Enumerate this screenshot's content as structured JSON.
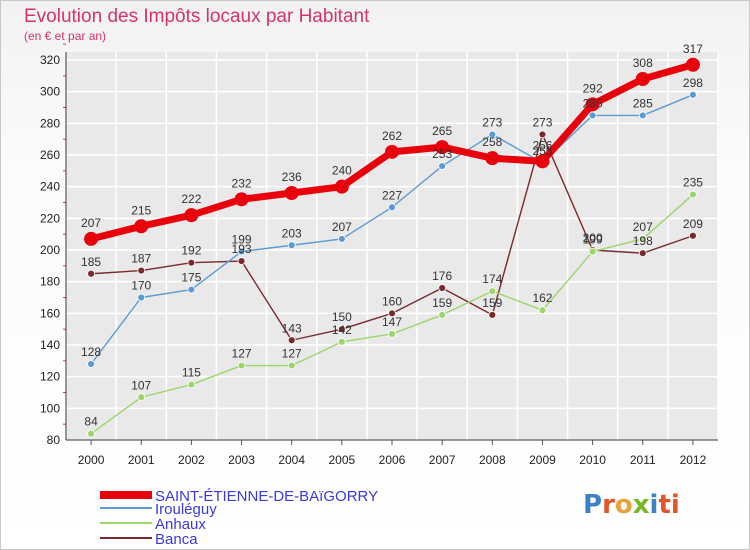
{
  "chart_data": {
    "type": "line",
    "title": "Evolution des Impôts locaux par Habitant",
    "subtitle": "(en € et par an)",
    "x": [
      "2000",
      "2001",
      "2002",
      "2003",
      "2004",
      "2005",
      "2006",
      "2007",
      "2008",
      "2009",
      "2010",
      "2011",
      "2012"
    ],
    "ylim": [
      80,
      320
    ],
    "yticks": [
      80,
      100,
      120,
      140,
      160,
      180,
      200,
      220,
      240,
      260,
      280,
      300,
      320
    ],
    "series": [
      {
        "name": "SAINT-ÉTIENNE-DE-BAïGORRY",
        "color": "#e8000b",
        "values": [
          207,
          215,
          222,
          232,
          236,
          240,
          262,
          265,
          258,
          256,
          292,
          308,
          317
        ]
      },
      {
        "name": "Irouléguy",
        "color": "#5b9bd5",
        "values": [
          128,
          170,
          175,
          199,
          203,
          207,
          227,
          253,
          273,
          255,
          285,
          285,
          298
        ]
      },
      {
        "name": "Anhaux",
        "color": "#9cd66a",
        "values": [
          84,
          107,
          115,
          127,
          127,
          142,
          147,
          159,
          174,
          162,
          199,
          207,
          235
        ]
      },
      {
        "name": "Banca",
        "color": "#7a2a2a",
        "values": [
          185,
          187,
          192,
          193,
          143,
          150,
          160,
          176,
          159,
          273,
          200,
          198,
          209
        ]
      }
    ],
    "legend_position": "bottom-left"
  },
  "brand": {
    "letters": [
      "P",
      "r",
      "o",
      "x",
      "i",
      "ti"
    ]
  }
}
